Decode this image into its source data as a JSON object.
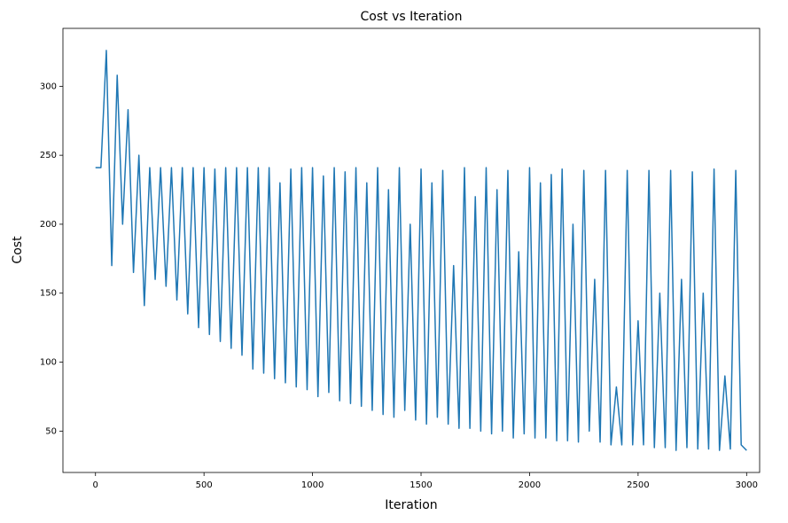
{
  "chart_data": {
    "type": "line",
    "title": "Cost vs Iteration",
    "x_label": "Iteration",
    "y_label": "Cost",
    "x": [
      0,
      25,
      50,
      75,
      100,
      125,
      150,
      175,
      200,
      225,
      250,
      275,
      300,
      325,
      350,
      375,
      400,
      425,
      450,
      475,
      500,
      525,
      550,
      575,
      600,
      625,
      650,
      675,
      700,
      725,
      750,
      775,
      800,
      825,
      850,
      875,
      900,
      925,
      950,
      975,
      1000,
      1025,
      1050,
      1075,
      1100,
      1125,
      1150,
      1175,
      1200,
      1225,
      1250,
      1275,
      1300,
      1325,
      1350,
      1375,
      1400,
      1425,
      1450,
      1475,
      1500,
      1525,
      1550,
      1575,
      1600,
      1625,
      1650,
      1675,
      1700,
      1725,
      1750,
      1775,
      1800,
      1825,
      1850,
      1875,
      1900,
      1925,
      1950,
      1975,
      2000,
      2025,
      2050,
      2075,
      2100,
      2125,
      2150,
      2175,
      2200,
      2225,
      2250,
      2275,
      2300,
      2325,
      2350,
      2375,
      2400,
      2425,
      2450,
      2475,
      2500,
      2525,
      2550,
      2575,
      2600,
      2625,
      2650,
      2675,
      2700,
      2725,
      2750,
      2775,
      2800,
      2825,
      2850,
      2875,
      2900,
      2925,
      2950,
      2975,
      3000
    ],
    "series": [
      {
        "color": "#1f77b4",
        "values": [
          241,
          241,
          326,
          170,
          308,
          200,
          283,
          165,
          250,
          141,
          241,
          160,
          241,
          155,
          241,
          145,
          241,
          135,
          241,
          125,
          241,
          120,
          240,
          115,
          241,
          110,
          241,
          105,
          241,
          95,
          241,
          92,
          241,
          88,
          230,
          85,
          240,
          82,
          241,
          80,
          241,
          75,
          235,
          78,
          241,
          72,
          238,
          70,
          241,
          68,
          230,
          65,
          241,
          62,
          225,
          60,
          241,
          65,
          200,
          58,
          240,
          55,
          230,
          60,
          239,
          55,
          170,
          52,
          241,
          52,
          220,
          50,
          241,
          48,
          225,
          50,
          239,
          45,
          180,
          48,
          241,
          45,
          230,
          45,
          236,
          43,
          240,
          43,
          200,
          42,
          239,
          50,
          160,
          42,
          239,
          40,
          82,
          40,
          239,
          40,
          130,
          40,
          239,
          38,
          150,
          38,
          239,
          36,
          160,
          38,
          238,
          37,
          150,
          37,
          240,
          36,
          90,
          37,
          239,
          40,
          36
        ]
      }
    ],
    "xlim": [
      -150,
      3060
    ],
    "xticks": [
      0,
      500,
      1000,
      1500,
      2000,
      2500,
      3000
    ],
    "ylim": [
      20,
      342
    ],
    "yticks": [
      50,
      100,
      150,
      200,
      250,
      300
    ]
  }
}
